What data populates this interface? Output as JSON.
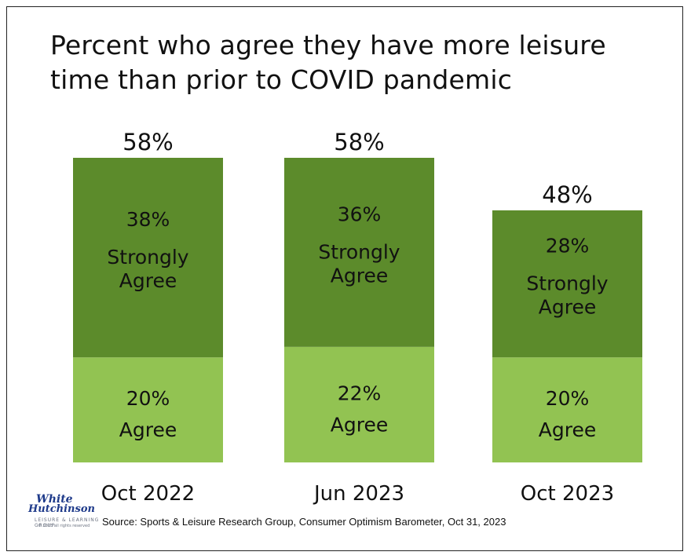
{
  "chart_data": {
    "type": "bar",
    "stacked": true,
    "title": "Percent who agree they have more leisure time than prior to COVID pandemic",
    "categories": [
      "Oct 2022",
      "Jun 2023",
      "Oct 2023"
    ],
    "totals": [
      "58%",
      "58%",
      "48%"
    ],
    "series": [
      {
        "name": "Agree",
        "values": [
          20,
          22,
          20
        ],
        "color": "#92c352",
        "labels": [
          "20%",
          "22%",
          "20%"
        ]
      },
      {
        "name": "Strongly Agree",
        "values": [
          38,
          36,
          28
        ],
        "color": "#5c8b2b",
        "labels": [
          "38%",
          "36%",
          "28%"
        ]
      }
    ],
    "segment_text": {
      "agree_label": "Agree",
      "strongly_line1": "Strongly",
      "strongly_line2": "Agree"
    },
    "ylim": [
      0,
      58
    ]
  },
  "logo": {
    "line1": "White",
    "line2": "Hutchinson",
    "tagline": "LEISURE & LEARNING GROUP",
    "copyright": "© 2023 all rights reserved"
  },
  "source": "Source: Sports & Leisure Research Group, Consumer Optimism Barometer, Oct 31, 2023"
}
